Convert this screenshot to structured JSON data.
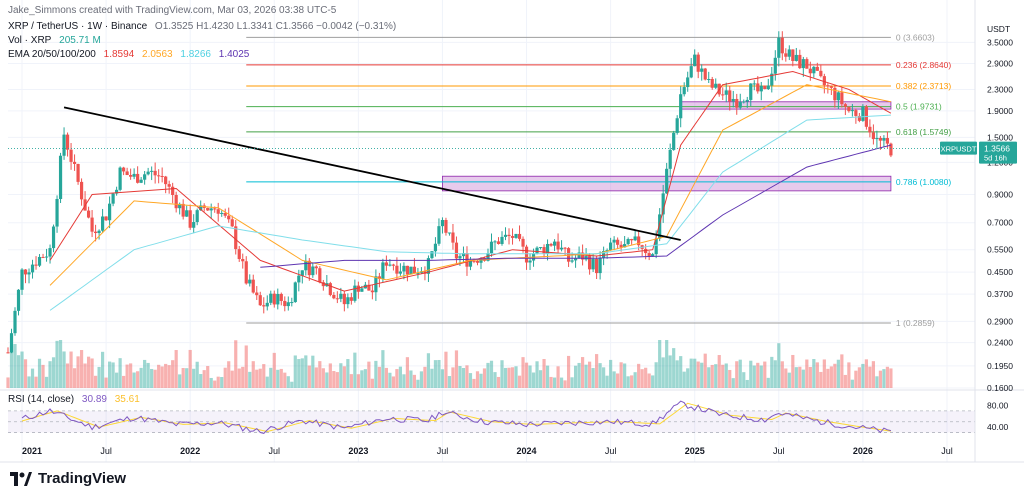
{
  "header": {
    "created_by": "Jake_Simmons created with TradingView.com, Mar 03, 2026 03:38 UTC-5",
    "symbol_line": "XRP / TetherUS · 1W · Binance",
    "ohlc": "O1.3525  H1.4230  L1.3341  C1.3566  −0.0042 (−0.31%)",
    "vol_label": "Vol · XRP",
    "vol_value": "205.71 M",
    "ema_label": "EMA 20/50/100/200",
    "ema_values": [
      "1.8594",
      "2.0563",
      "1.8266",
      "1.4025"
    ]
  },
  "rsi": {
    "label": "RSI (14, close)",
    "value": "30.89",
    "sma": "35.61",
    "ticks": [
      "80.00",
      "40.00"
    ]
  },
  "price_axis": {
    "unit": "USDT",
    "ticks": [
      "3.5000",
      "2.9000",
      "2.3000",
      "1.9000",
      "1.5000",
      "1.2000",
      "0.9000",
      "0.7000",
      "0.5500",
      "0.4500",
      "0.3700",
      "0.2900",
      "0.2400",
      "0.1950",
      "0.1600"
    ],
    "price_badge": "XRPUSDT",
    "price_value": "1.3566",
    "countdown": "5d 16h"
  },
  "time_axis": [
    "2021",
    "Jul",
    "2022",
    "Jul",
    "2023",
    "Jul",
    "2024",
    "Jul",
    "2025",
    "Jul",
    "2026",
    "Jul"
  ],
  "brand": "TradingView",
  "colors": {
    "up": "#26a69a",
    "down": "#ef5350",
    "ema20": "#e53935",
    "ema50": "#ffa726",
    "ema100": "#80deea",
    "ema200": "#5e35b1",
    "rsi": "#7e57c2",
    "rsi_sma": "#fdd835",
    "trendline": "#000000",
    "zone": "#ba68c8"
  },
  "chart_data": {
    "type": "candlestick",
    "title": "XRP / TetherUS · 1W · Binance",
    "y_scale": "log",
    "ylim": [
      0.16,
      4.2
    ],
    "xlim": [
      "2020-12",
      "2026-09"
    ],
    "fib_levels": [
      {
        "ratio": "0",
        "value": 3.6603,
        "label": "0 (3.6603)",
        "color": "#9e9e9e"
      },
      {
        "ratio": "0.236",
        "value": 2.864,
        "label": "0.236 (2.8640)",
        "color": "#e53935"
      },
      {
        "ratio": "0.382",
        "value": 2.3713,
        "label": "0.382 (2.3713)",
        "color": "#ff9800"
      },
      {
        "ratio": "0.5",
        "value": 1.9731,
        "label": "0.5 (1.9731)",
        "color": "#4caf50"
      },
      {
        "ratio": "0.618",
        "value": 1.5749,
        "label": "0.618 (1.5749)",
        "color": "#43a047"
      },
      {
        "ratio": "0.786",
        "value": 1.008,
        "label": "0.786 (1.0080)",
        "color": "#00bcd4"
      },
      {
        "ratio": "1",
        "value": 0.2859,
        "label": "1 (0.2859)",
        "color": "#9e9e9e"
      }
    ],
    "zones": [
      {
        "from": 0.93,
        "to": 1.06,
        "start": "2023-07",
        "end": "2026-03"
      },
      {
        "from": 1.93,
        "to": 2.06,
        "start": "2024-12",
        "end": "2026-03"
      }
    ],
    "trendline": {
      "start": [
        "2021-04",
        1.96
      ],
      "end": [
        "2024-12",
        0.6
      ]
    },
    "price_path": [
      [
        "2020-12",
        0.22
      ],
      [
        "2021-01",
        0.45
      ],
      [
        "2021-02",
        0.5
      ],
      [
        "2021-03",
        0.55
      ],
      [
        "2021-04",
        1.55
      ],
      [
        "2021-05",
        1.0
      ],
      [
        "2021-06",
        0.65
      ],
      [
        "2021-07",
        0.75
      ],
      [
        "2021-08",
        1.1
      ],
      [
        "2021-09",
        1.05
      ],
      [
        "2021-10",
        1.1
      ],
      [
        "2021-11",
        1.05
      ],
      [
        "2021-12",
        0.85
      ],
      [
        "2022-01",
        0.7
      ],
      [
        "2022-02",
        0.8
      ],
      [
        "2022-03",
        0.8
      ],
      [
        "2022-04",
        0.65
      ],
      [
        "2022-05",
        0.42
      ],
      [
        "2022-06",
        0.33
      ],
      [
        "2022-07",
        0.36
      ],
      [
        "2022-08",
        0.34
      ],
      [
        "2022-09",
        0.48
      ],
      [
        "2022-10",
        0.46
      ],
      [
        "2022-11",
        0.39
      ],
      [
        "2022-12",
        0.34
      ],
      [
        "2023-01",
        0.4
      ],
      [
        "2023-02",
        0.38
      ],
      [
        "2023-03",
        0.5
      ],
      [
        "2023-04",
        0.47
      ],
      [
        "2023-05",
        0.46
      ],
      [
        "2023-06",
        0.48
      ],
      [
        "2023-07",
        0.7
      ],
      [
        "2023-08",
        0.52
      ],
      [
        "2023-09",
        0.5
      ],
      [
        "2023-10",
        0.53
      ],
      [
        "2023-11",
        0.6
      ],
      [
        "2023-12",
        0.62
      ],
      [
        "2024-01",
        0.52
      ],
      [
        "2024-02",
        0.55
      ],
      [
        "2024-03",
        0.6
      ],
      [
        "2024-04",
        0.5
      ],
      [
        "2024-05",
        0.52
      ],
      [
        "2024-06",
        0.47
      ],
      [
        "2024-07",
        0.57
      ],
      [
        "2024-08",
        0.56
      ],
      [
        "2024-09",
        0.59
      ],
      [
        "2024-10",
        0.52
      ],
      [
        "2024-11",
        1.1
      ],
      [
        "2024-12",
        2.2
      ],
      [
        "2025-01",
        3.0
      ],
      [
        "2025-02",
        2.4
      ],
      [
        "2025-03",
        2.2
      ],
      [
        "2025-04",
        2.1
      ],
      [
        "2025-05",
        2.3
      ],
      [
        "2025-06",
        2.2
      ],
      [
        "2025-07",
        3.5
      ],
      [
        "2025-08",
        3.0
      ],
      [
        "2025-09",
        2.85
      ],
      [
        "2025-10",
        2.45
      ],
      [
        "2025-11",
        2.2
      ],
      [
        "2025-12",
        1.9
      ],
      [
        "2026-01",
        1.85
      ],
      [
        "2026-02",
        1.45
      ],
      [
        "2026-03",
        1.3566
      ]
    ],
    "ema_series": [
      {
        "name": "EMA 20",
        "color": "#e53935",
        "values": [
          [
            "2021-03",
            0.5
          ],
          [
            "2021-06",
            0.9
          ],
          [
            "2021-12",
            0.95
          ],
          [
            "2022-06",
            0.5
          ],
          [
            "2022-12",
            0.38
          ],
          [
            "2023-06",
            0.45
          ],
          [
            "2023-12",
            0.55
          ],
          [
            "2024-06",
            0.52
          ],
          [
            "2024-10",
            0.55
          ],
          [
            "2024-12",
            1.4
          ],
          [
            "2025-03",
            2.4
          ],
          [
            "2025-08",
            2.7
          ],
          [
            "2025-12",
            2.3
          ],
          [
            "2026-03",
            1.86
          ]
        ]
      },
      {
        "name": "EMA 50",
        "color": "#ffa726",
        "values": [
          [
            "2021-03",
            0.4
          ],
          [
            "2021-09",
            0.85
          ],
          [
            "2022-03",
            0.8
          ],
          [
            "2022-09",
            0.5
          ],
          [
            "2023-03",
            0.42
          ],
          [
            "2023-09",
            0.5
          ],
          [
            "2024-06",
            0.53
          ],
          [
            "2024-11",
            0.62
          ],
          [
            "2025-03",
            1.6
          ],
          [
            "2025-09",
            2.4
          ],
          [
            "2026-03",
            2.06
          ]
        ]
      },
      {
        "name": "EMA 100",
        "color": "#80deea",
        "values": [
          [
            "2021-03",
            0.32
          ],
          [
            "2021-09",
            0.55
          ],
          [
            "2022-03",
            0.68
          ],
          [
            "2022-09",
            0.6
          ],
          [
            "2023-03",
            0.54
          ],
          [
            "2023-09",
            0.53
          ],
          [
            "2024-06",
            0.53
          ],
          [
            "2024-11",
            0.58
          ],
          [
            "2025-03",
            1.1
          ],
          [
            "2025-09",
            1.75
          ],
          [
            "2026-03",
            1.83
          ]
        ]
      },
      {
        "name": "EMA 200",
        "color": "#5e35b1",
        "values": [
          [
            "2022-06",
            0.47
          ],
          [
            "2022-12",
            0.5
          ],
          [
            "2023-06",
            0.5
          ],
          [
            "2023-12",
            0.51
          ],
          [
            "2024-06",
            0.51
          ],
          [
            "2024-11",
            0.52
          ],
          [
            "2025-03",
            0.75
          ],
          [
            "2025-09",
            1.15
          ],
          [
            "2026-03",
            1.4
          ]
        ]
      }
    ],
    "rsi_series": [
      [
        "2021-01",
        55
      ],
      [
        "2021-03",
        70
      ],
      [
        "2021-06",
        40
      ],
      [
        "2021-09",
        58
      ],
      [
        "2021-12",
        45
      ],
      [
        "2022-03",
        48
      ],
      [
        "2022-06",
        32
      ],
      [
        "2022-09",
        52
      ],
      [
        "2022-12",
        38
      ],
      [
        "2023-03",
        56
      ],
      [
        "2023-06",
        52
      ],
      [
        "2023-07",
        68
      ],
      [
        "2023-10",
        50
      ],
      [
        "2024-01",
        45
      ],
      [
        "2024-04",
        48
      ],
      [
        "2024-07",
        50
      ],
      [
        "2024-10",
        46
      ],
      [
        "2024-12",
        84
      ],
      [
        "2025-03",
        62
      ],
      [
        "2025-06",
        54
      ],
      [
        "2025-07",
        66
      ],
      [
        "2025-10",
        50
      ],
      [
        "2025-12",
        42
      ],
      [
        "2026-03",
        30.89
      ]
    ]
  }
}
